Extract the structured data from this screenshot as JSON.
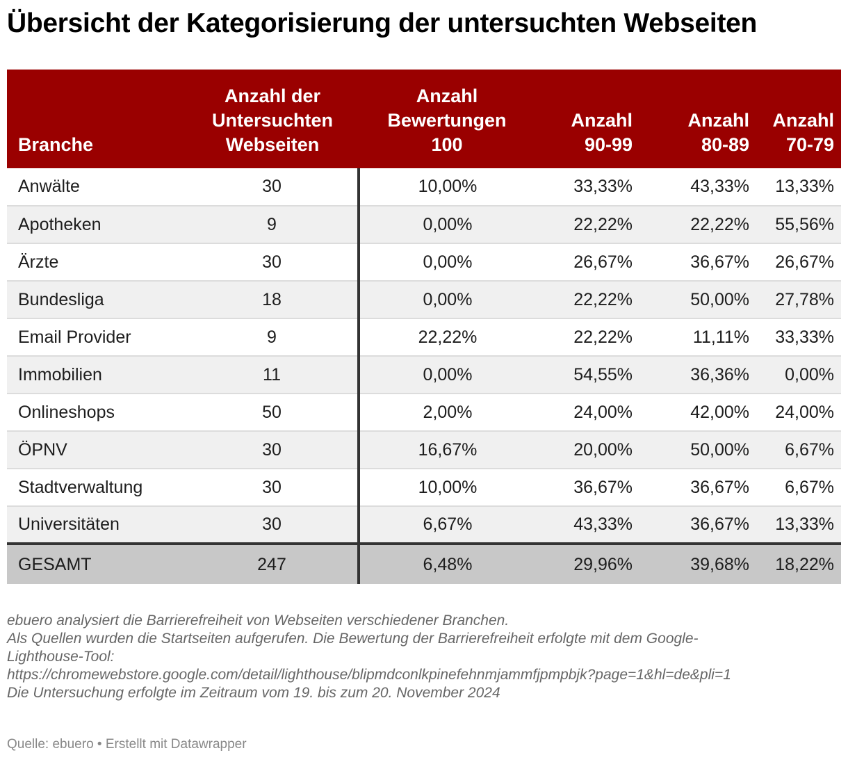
{
  "title": "Übersicht der Kategorisierung der untersuchten Webseiten",
  "chart_data": {
    "type": "table",
    "columns": [
      [
        "Branche"
      ],
      [
        "Anzahl der",
        "Untersuchten",
        "Webseiten"
      ],
      [
        "Anzahl",
        "Bewertungen",
        "100"
      ],
      [
        "Anzahl",
        "90-99"
      ],
      [
        "Anzahl",
        "80-89"
      ],
      [
        "Anzahl",
        "70-79"
      ]
    ],
    "rows": [
      [
        "Anwälte",
        "30",
        "10,00%",
        "33,33%",
        "43,33%",
        "13,33%"
      ],
      [
        "Apotheken",
        "9",
        "0,00%",
        "22,22%",
        "22,22%",
        "55,56%"
      ],
      [
        "Ärzte",
        "30",
        "0,00%",
        "26,67%",
        "36,67%",
        "26,67%"
      ],
      [
        "Bundesliga",
        "18",
        "0,00%",
        "22,22%",
        "50,00%",
        "27,78%"
      ],
      [
        "Email Provider",
        "9",
        "22,22%",
        "22,22%",
        "11,11%",
        "33,33%"
      ],
      [
        "Immobilien",
        "11",
        "0,00%",
        "54,55%",
        "36,36%",
        "0,00%"
      ],
      [
        "Onlineshops",
        "50",
        "2,00%",
        "24,00%",
        "42,00%",
        "24,00%"
      ],
      [
        "ÖPNV",
        "30",
        "16,67%",
        "20,00%",
        "50,00%",
        "6,67%"
      ],
      [
        "Stadtverwaltung",
        "30",
        "10,00%",
        "36,67%",
        "36,67%",
        "6,67%"
      ],
      [
        "Universitäten",
        "30",
        "6,67%",
        "43,33%",
        "36,67%",
        "13,33%"
      ]
    ],
    "total": [
      "GESAMT",
      "247",
      "6,48%",
      "29,96%",
      "39,68%",
      "18,22%"
    ]
  },
  "notes": [
    "ebuero analysiert die Barrierefreiheit von Webseiten verschiedener Branchen.",
    "Als Quellen wurden die Startseiten aufgerufen. Die Bewertung der Barrierefreiheit erfolgte mit dem Google-",
    "Lighthouse-Tool:",
    "https://chromewebstore.google.com/detail/lighthouse/blipmdconlkpinefehnmjammfjpmpbjk?page=1&hl=de&pli=1",
    "Die Untersuchung erfolgte im Zeitraum vom 19. bis zum 20. November 2024"
  ],
  "source": "Quelle: ebuero • Erstellt mit Datawrapper",
  "colors": {
    "header_bg": "#9a0000",
    "header_text": "#ffffff",
    "alt_row": "#f0f0f0",
    "total_row": "#c8c8c8"
  }
}
